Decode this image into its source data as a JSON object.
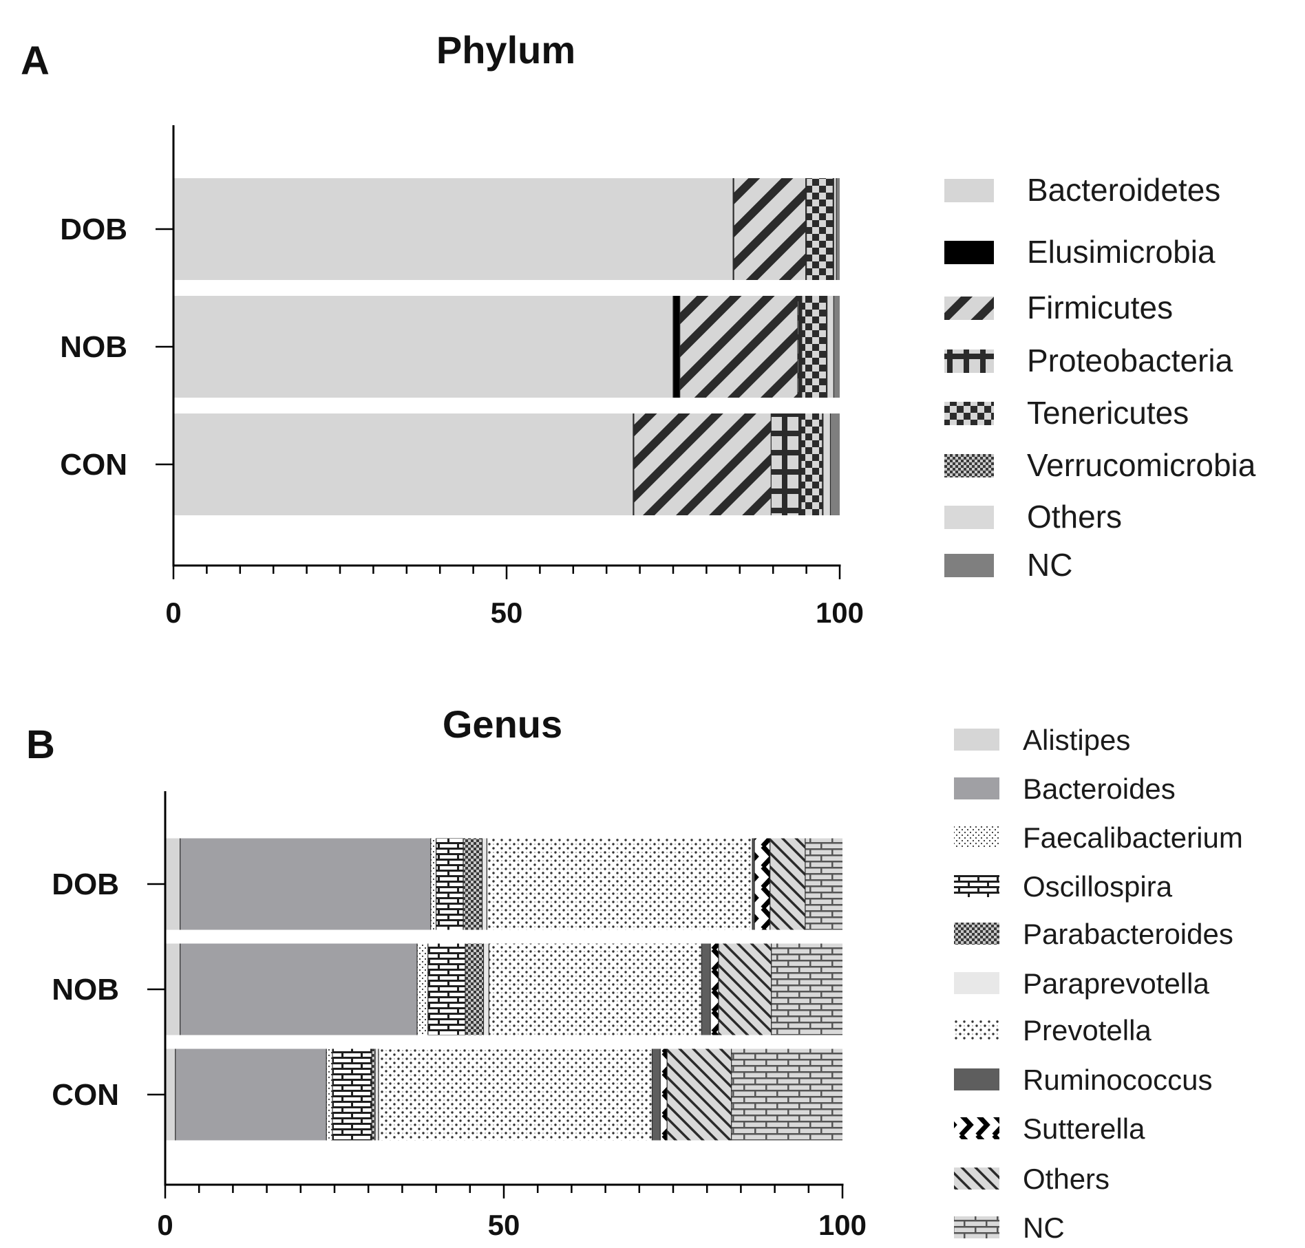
{
  "chart_data": [
    {
      "panel": "A",
      "type": "bar",
      "orientation": "horizontal",
      "stacked": true,
      "title": "Phylum",
      "xlim": [
        0,
        100
      ],
      "xticks": [
        0,
        50,
        100
      ],
      "categories": [
        "DOB",
        "NOB",
        "CON"
      ],
      "legend_position": "right",
      "series": [
        {
          "name": "Bacteroidetes",
          "values": [
            84.0,
            75.0,
            69.0
          ],
          "pattern": "solid-light"
        },
        {
          "name": "Elusimicrobia",
          "values": [
            0.1,
            1.0,
            0.1
          ],
          "pattern": "solid-black"
        },
        {
          "name": "Firmicutes",
          "values": [
            10.8,
            17.7,
            20.6
          ],
          "pattern": "diagonal"
        },
        {
          "name": "Proteobacteria",
          "values": [
            0.1,
            0.6,
            4.5
          ],
          "pattern": "cross"
        },
        {
          "name": "Tenericutes",
          "values": [
            4.0,
            3.7,
            3.2
          ],
          "pattern": "checker"
        },
        {
          "name": "Verrucomicrobia",
          "values": [
            0.1,
            0.1,
            0.1
          ],
          "pattern": "fine-checker"
        },
        {
          "name": "Others",
          "values": [
            0.4,
            1.0,
            1.1
          ],
          "pattern": "solid-light2"
        },
        {
          "name": "NC",
          "values": [
            0.5,
            0.9,
            1.4
          ],
          "pattern": "solid-dark"
        }
      ]
    },
    {
      "panel": "B",
      "type": "bar",
      "orientation": "horizontal",
      "stacked": true,
      "title": "Genus",
      "xlim": [
        0,
        100
      ],
      "xticks": [
        0,
        50,
        100
      ],
      "categories": [
        "DOB",
        "NOB",
        "CON"
      ],
      "legend_position": "right",
      "series": [
        {
          "name": "Alistipes",
          "values": [
            2.2,
            2.2,
            1.5
          ],
          "pattern": "solid-light"
        },
        {
          "name": "Bacteroides",
          "values": [
            37.0,
            35.0,
            22.3
          ],
          "pattern": "solid-mid"
        },
        {
          "name": "Faecalibacterium",
          "values": [
            0.8,
            1.6,
            0.9
          ],
          "pattern": "dots"
        },
        {
          "name": "Oscillospira",
          "values": [
            4.0,
            5.5,
            5.8
          ],
          "pattern": "brick-dark"
        },
        {
          "name": "Parabacteroides",
          "values": [
            2.8,
            2.7,
            0.5
          ],
          "pattern": "fine-checker"
        },
        {
          "name": "Paraprevotella",
          "values": [
            0.7,
            0.8,
            0.5
          ],
          "pattern": "solid-verylight"
        },
        {
          "name": "Prevotella",
          "values": [
            39.2,
            31.4,
            40.4
          ],
          "pattern": "prevotella"
        },
        {
          "name": "Ruminococcus",
          "values": [
            0.3,
            1.3,
            1.2
          ],
          "pattern": "solid-darkgrey"
        },
        {
          "name": "Sutterella",
          "values": [
            2.3,
            1.2,
            1.0
          ],
          "pattern": "zigzag"
        },
        {
          "name": "Others",
          "values": [
            5.2,
            7.8,
            9.5
          ],
          "pattern": "diag-thin"
        },
        {
          "name": "NC",
          "values": [
            5.5,
            10.5,
            16.4
          ],
          "pattern": "brick-light"
        }
      ]
    }
  ],
  "panel_letters": [
    "A",
    "B"
  ]
}
